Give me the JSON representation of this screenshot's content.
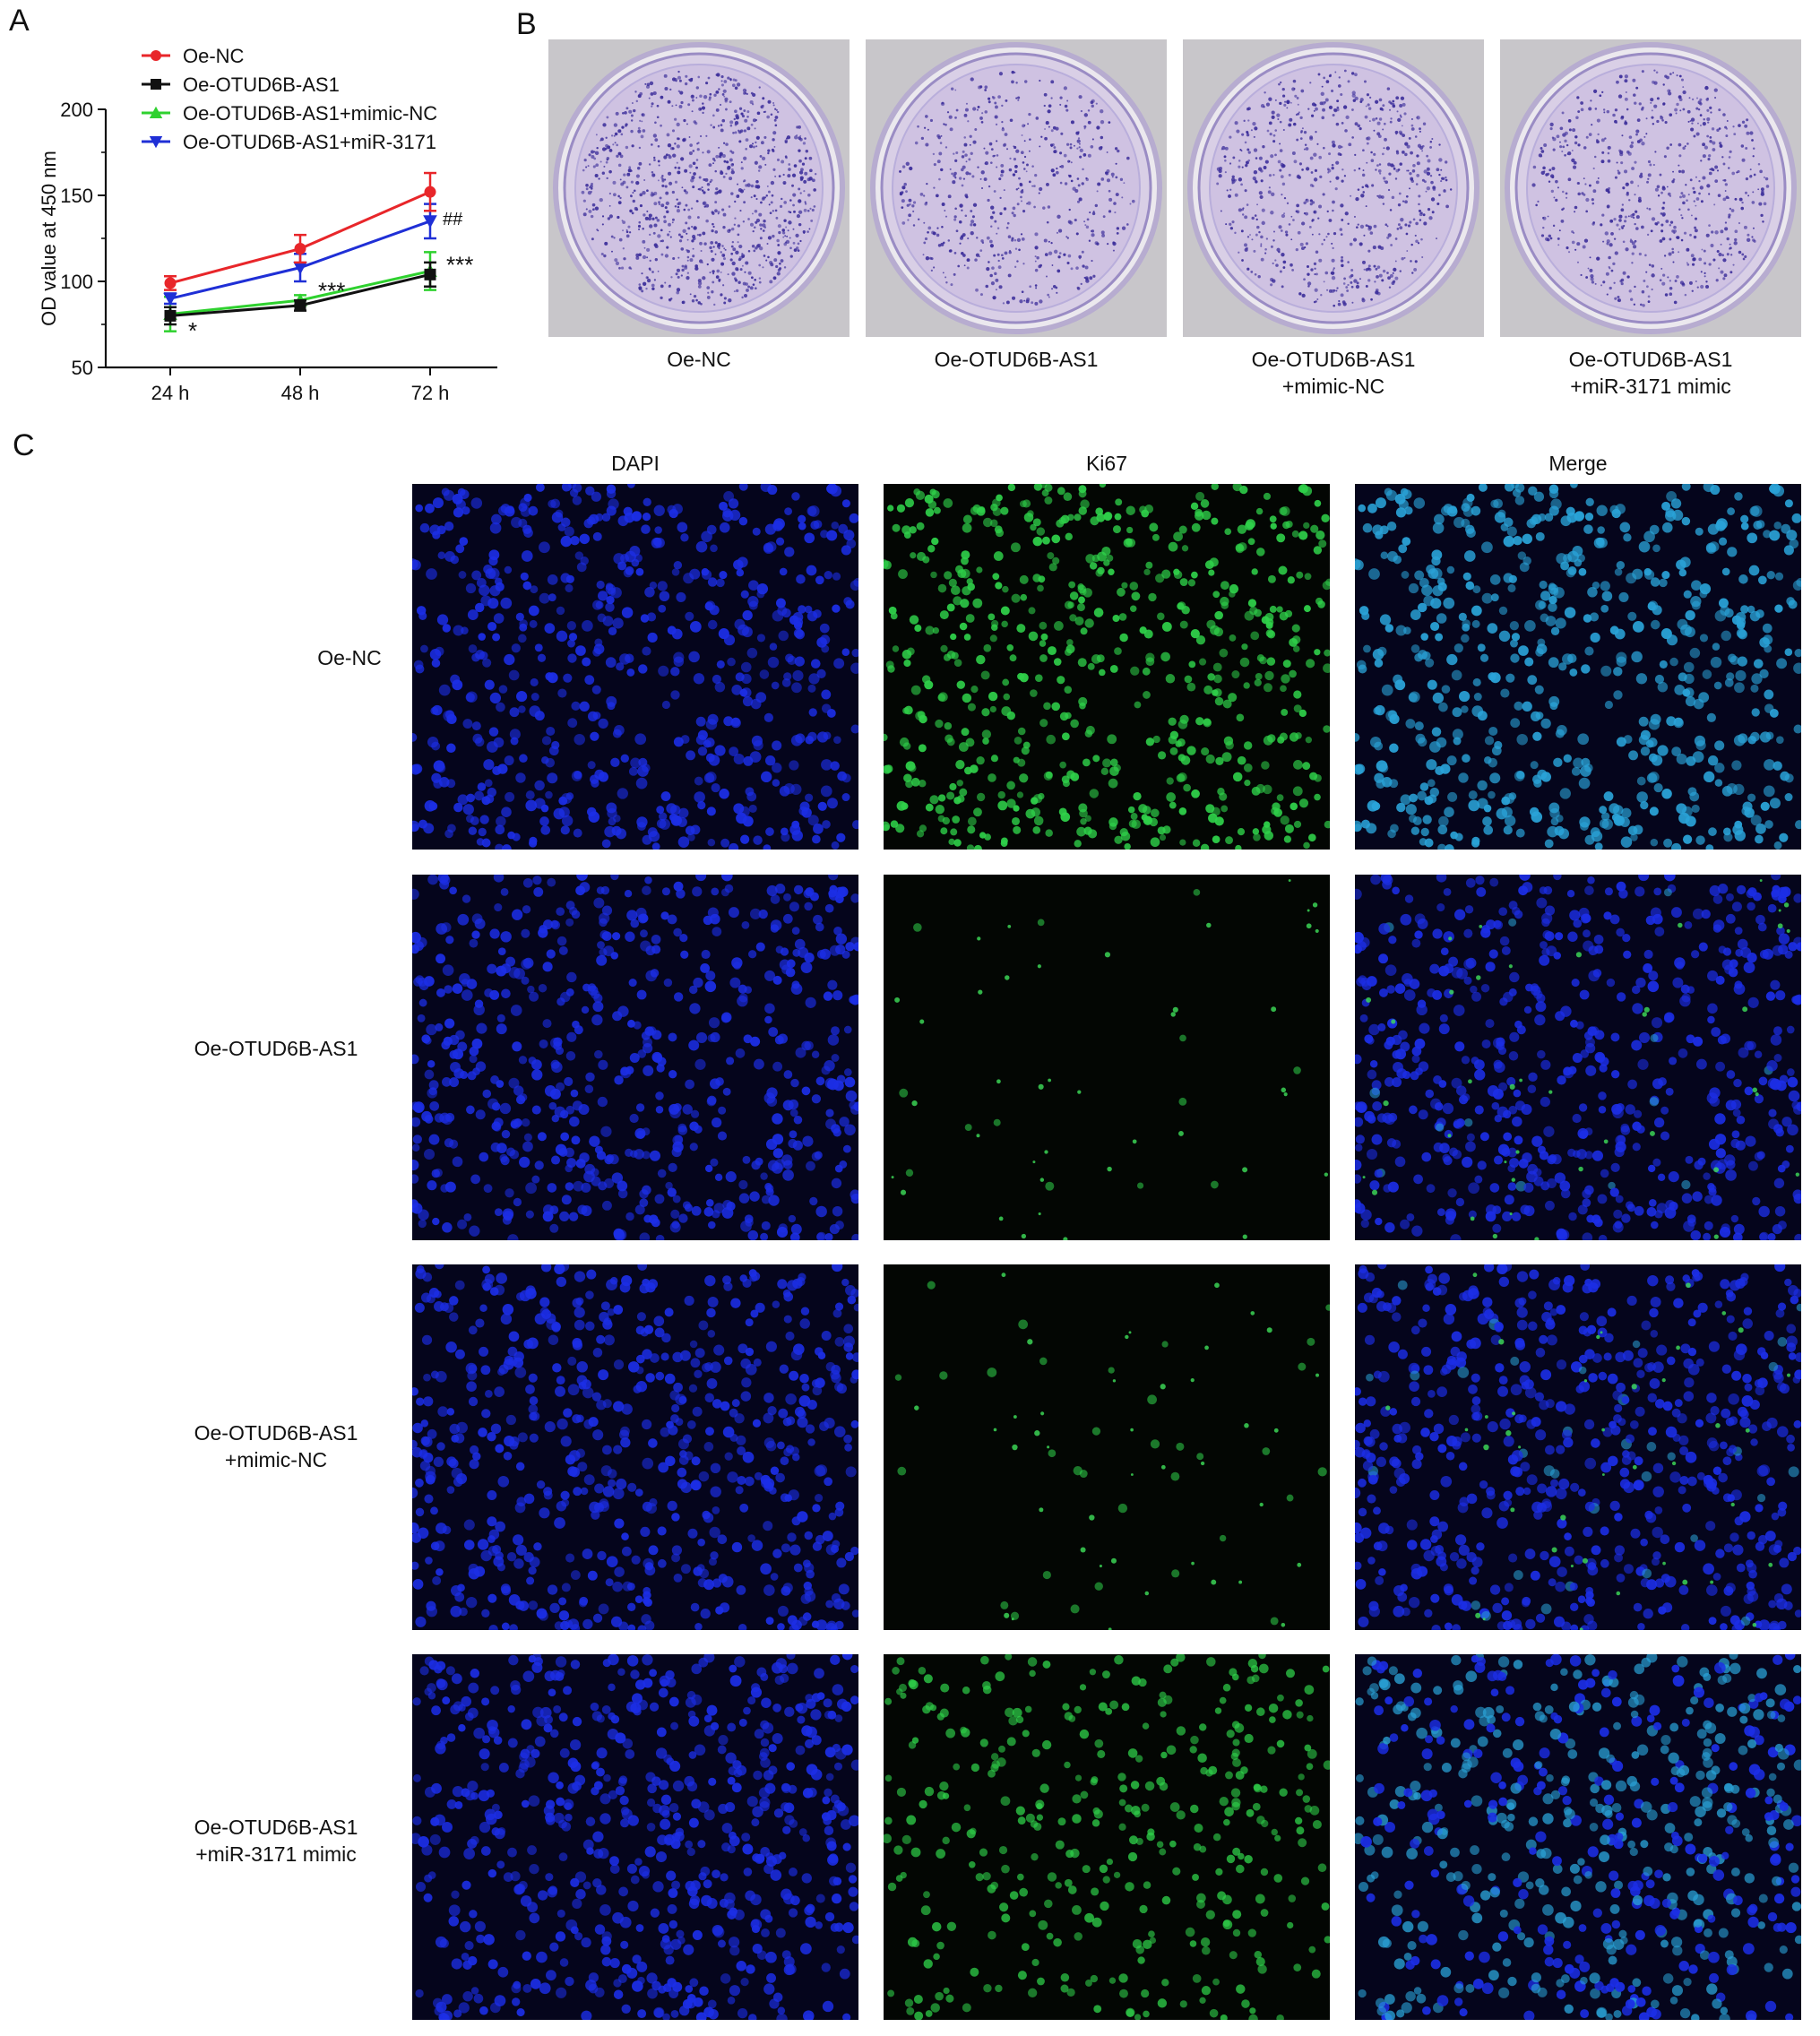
{
  "panel_letters": {
    "a": "A",
    "b": "B",
    "c": "C"
  },
  "chart_data": {
    "type": "line",
    "title": "",
    "xlabel": "",
    "ylabel": "OD value at 450 nm",
    "categories": [
      "24 h",
      "48 h",
      "72 h"
    ],
    "yticks": [
      "50",
      "100",
      "150",
      "200"
    ],
    "ylim": [
      50,
      200
    ],
    "grid": false,
    "legend_position": "top-left",
    "series": [
      {
        "name": "Oe-NC",
        "color": "#e8262a",
        "marker": "circle",
        "values": [
          99,
          119,
          152
        ],
        "errors": [
          4,
          8,
          11
        ]
      },
      {
        "name": "Oe-OTUD6B-AS1",
        "color": "#111111",
        "marker": "square",
        "values": [
          80,
          86,
          104
        ],
        "errors": [
          5,
          3,
          7
        ]
      },
      {
        "name": "Oe-OTUD6B-AS1+mimic-NC",
        "color": "#2fd12f",
        "marker": "triangle-up",
        "values": [
          81,
          89,
          106
        ],
        "errors": [
          10,
          3,
          11
        ]
      },
      {
        "name": "Oe-OTUD6B-AS1+miR-3171",
        "color": "#1f2fd6",
        "marker": "triangle-down",
        "values": [
          90,
          108,
          135
        ],
        "errors": [
          3,
          8,
          10
        ]
      }
    ],
    "annotations": [
      {
        "text": "*",
        "x": "24 h",
        "y": 74
      },
      {
        "text": "***",
        "x": "48 h",
        "y": 93
      },
      {
        "text": "***",
        "x": "72 h",
        "y": 109
      },
      {
        "text": "##",
        "x": "72 h",
        "y": 137
      }
    ]
  },
  "panel_b": {
    "dish_labels": [
      [
        "Oe-NC"
      ],
      [
        "Oe-OTUD6B-AS1"
      ],
      [
        "Oe-OTUD6B-AS1",
        "+mimic-NC"
      ],
      [
        "Oe-OTUD6B-AS1",
        "+miR-3171 mimic"
      ]
    ]
  },
  "panel_c": {
    "columns": [
      "DAPI",
      "Ki67",
      "Merge"
    ],
    "rows": [
      [
        "Oe-NC"
      ],
      [
        "Oe-OTUD6B-AS1"
      ],
      [
        "Oe-OTUD6B-AS1",
        "+mimic-NC"
      ],
      [
        "Oe-OTUD6B-AS1",
        "+miR-3171 mimic"
      ]
    ],
    "ki67_level": [
      1.0,
      0.03,
      0.05,
      0.6
    ]
  },
  "colors": {
    "dapi": "#1f2fe0",
    "ki67": "#22c23a",
    "dish_stain": "#3b2d9a"
  }
}
